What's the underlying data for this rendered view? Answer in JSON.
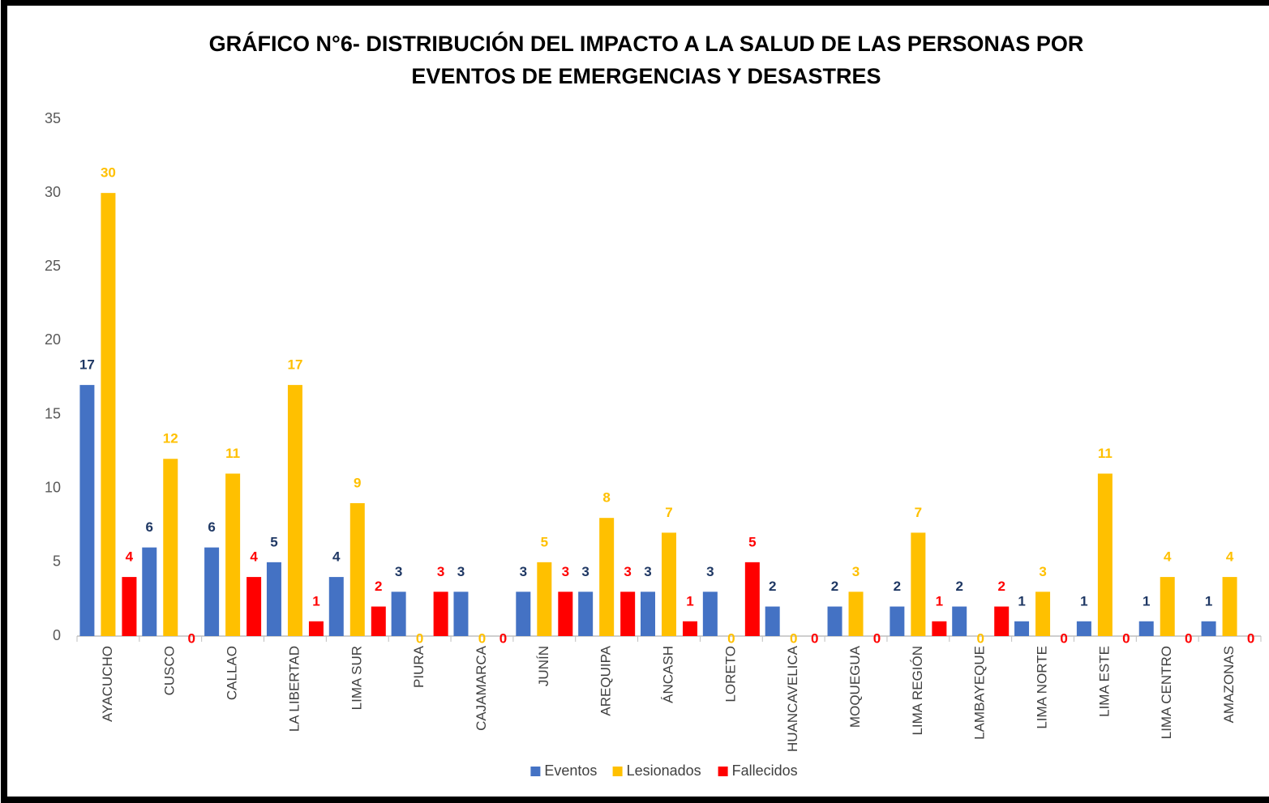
{
  "chart_data": {
    "type": "bar",
    "title": [
      "GRÁFICO N°6- DISTRIBUCIÓN DEL IMPACTO A LA SALUD DE LAS PERSONAS POR",
      "EVENTOS DE EMERGENCIAS Y DESASTRES"
    ],
    "categories": [
      "AYACUCHO",
      "CUSCO",
      "CALLAO",
      "LA LIBERTAD",
      "LIMA SUR",
      "PIURA",
      "CAJAMARCA",
      "JUNÍN",
      "AREQUIPA",
      "ÁNCASH",
      "LORETO",
      "HUANCAVELICA",
      "MOQUEGUA",
      "LIMA REGIÓN",
      "LAMBAYEQUE",
      "LIMA NORTE",
      "LIMA ESTE",
      "LIMA CENTRO",
      "AMAZONAS"
    ],
    "series": [
      {
        "name": "Eventos",
        "color": "#4472c4",
        "label_color": "#1f3864",
        "values": [
          17,
          6,
          6,
          5,
          4,
          3,
          3,
          3,
          3,
          3,
          3,
          2,
          2,
          2,
          2,
          1,
          1,
          1,
          1
        ]
      },
      {
        "name": "Lesionados",
        "color": "#ffc000",
        "label_color": "#ffc000",
        "values": [
          30,
          12,
          11,
          17,
          9,
          0,
          0,
          5,
          8,
          7,
          0,
          0,
          3,
          7,
          0,
          3,
          11,
          4,
          4
        ]
      },
      {
        "name": "Fallecidos",
        "color": "#ff0000",
        "label_color": "#ff0000",
        "values": [
          4,
          0,
          4,
          1,
          2,
          3,
          0,
          3,
          3,
          1,
          5,
          0,
          0,
          1,
          2,
          0,
          0,
          0,
          0
        ]
      }
    ],
    "ylim": [
      0,
      35
    ],
    "yticks": [
      0,
      5,
      10,
      15,
      20,
      25,
      30,
      35
    ],
    "grid": false,
    "legend": "bottom"
  }
}
